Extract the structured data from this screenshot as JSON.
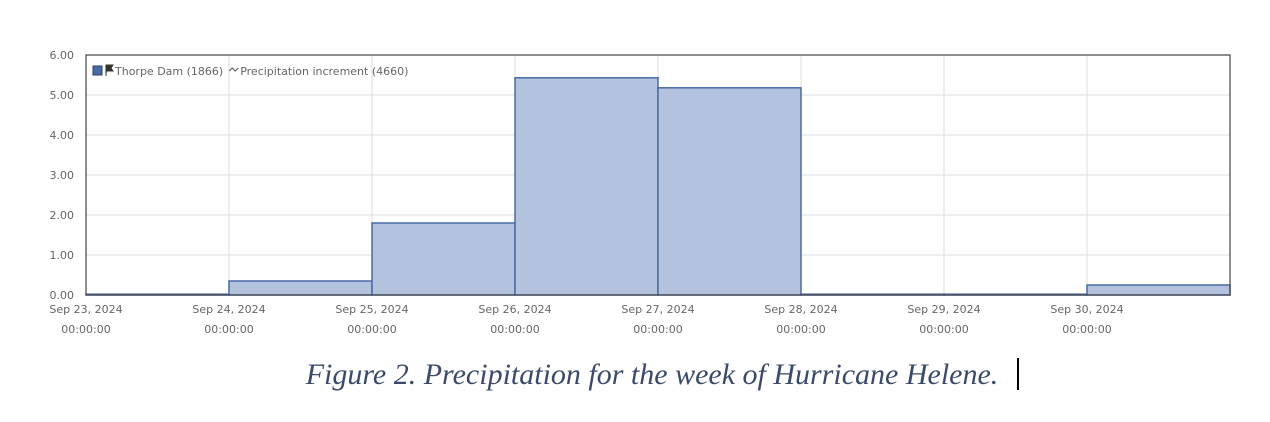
{
  "chart_data": {
    "type": "bar",
    "categories": [
      "Sep 23, 2024",
      "Sep 24, 2024",
      "Sep 25, 2024",
      "Sep 26, 2024",
      "Sep 27, 2024",
      "Sep 28, 2024",
      "Sep 29, 2024",
      "Sep 30, 2024"
    ],
    "category_times": [
      "00:00:00",
      "00:00:00",
      "00:00:00",
      "00:00:00",
      "00:00:00",
      "00:00:00",
      "00:00:00",
      "00:00:00"
    ],
    "series": [
      {
        "name": "Thorpe Dam (1866)",
        "color": "#b4c3dd",
        "edge_color": "#4a6aa5"
      },
      {
        "name": "Precipitation increment (4660)",
        "color": "#b4c3dd",
        "edge_color": "#4a6aa5",
        "values": [
          0.02,
          0.35,
          1.8,
          5.43,
          5.18,
          0.02,
          0.02,
          0.25
        ]
      }
    ],
    "ylim": [
      0,
      6
    ],
    "yticks": [
      {
        "value": 0,
        "label": "0.00"
      },
      {
        "value": 1,
        "label": "1.00"
      },
      {
        "value": 2,
        "label": "2.00"
      },
      {
        "value": 3,
        "label": "3.00"
      },
      {
        "value": 4,
        "label": "4.00"
      },
      {
        "value": 5,
        "label": "5.00"
      },
      {
        "value": 6,
        "label": "6.00"
      }
    ],
    "grid": true,
    "legend": "upper left",
    "caption": "Figure 2. Precipitation for the week of Hurricane Helene."
  }
}
